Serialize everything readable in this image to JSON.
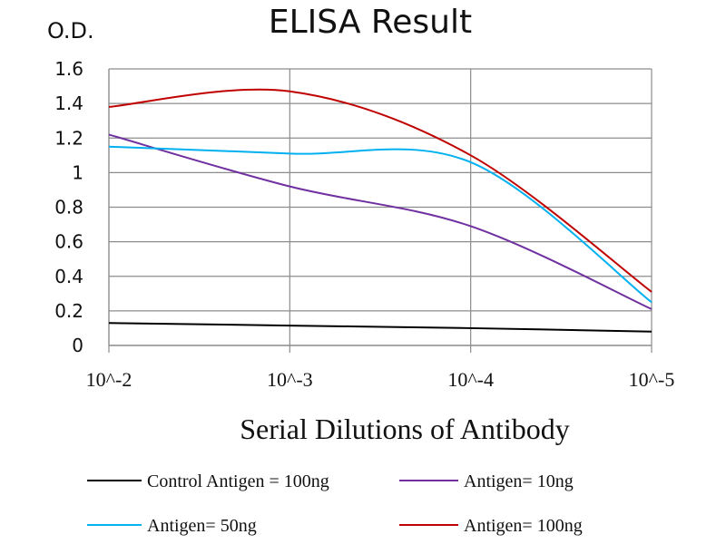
{
  "chart_data": {
    "type": "line",
    "title": "ELISA Result",
    "ylabel": "O.D.",
    "xlabel": "Serial Dilutions  of Antibody",
    "categories": [
      "10^-2",
      "10^-3",
      "10^-4",
      "10^-5"
    ],
    "y_ticks": [
      "0",
      "0.2",
      "0.4",
      "0.6",
      "0.8",
      "1",
      "1.2",
      "1.4",
      "1.6"
    ],
    "ylim": [
      0,
      1.6
    ],
    "grid": true,
    "legend_position": "bottom",
    "series": [
      {
        "name": "Control Antigen = 100ng",
        "color": "#000000",
        "values": [
          0.13,
          0.115,
          0.1,
          0.08
        ]
      },
      {
        "name": "Antigen= 10ng",
        "color": "#7030a0",
        "values": [
          1.22,
          0.92,
          0.69,
          0.21
        ]
      },
      {
        "name": "Antigen= 50ng",
        "color": "#00b0f0",
        "values": [
          1.15,
          1.11,
          1.06,
          0.25
        ]
      },
      {
        "name": "Antigen= 100ng",
        "color": "#c00000",
        "values": [
          1.38,
          1.47,
          1.1,
          0.31
        ]
      }
    ]
  }
}
